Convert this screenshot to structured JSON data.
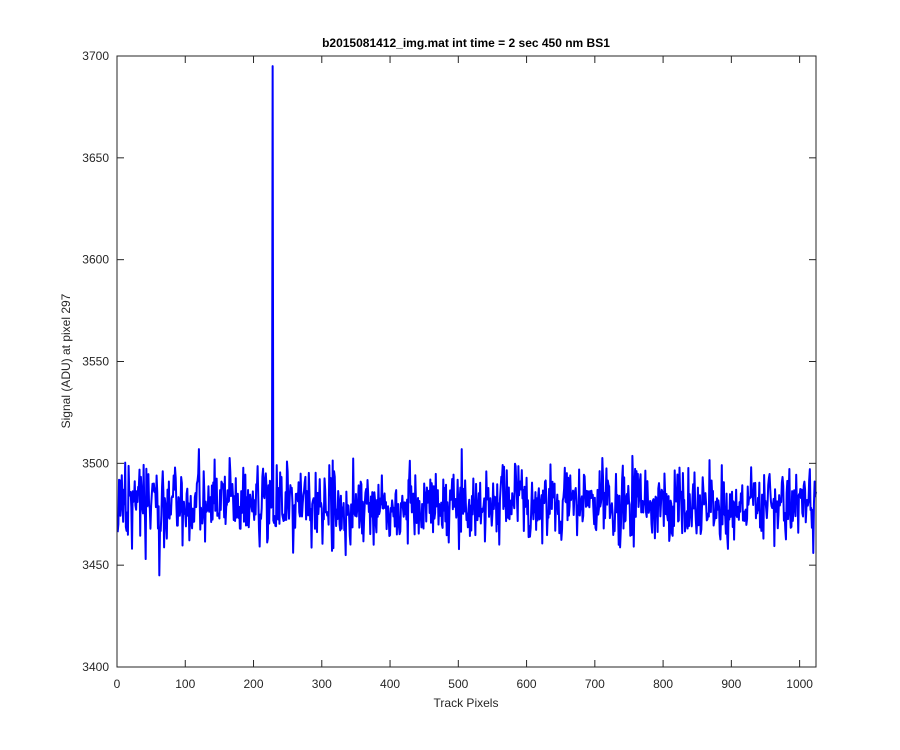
{
  "chart_data": {
    "type": "line",
    "title": "b2015081412_img.mat int time = 2 sec  450 nm BS1",
    "xlabel": "Track Pixels",
    "ylabel": "Signal (ADU) at pixel 297",
    "xlim": [
      0,
      1024
    ],
    "ylim": [
      3400,
      3700
    ],
    "xticks": [
      0,
      100,
      200,
      300,
      400,
      500,
      600,
      700,
      800,
      900,
      1000
    ],
    "yticks": [
      3400,
      3450,
      3500,
      3550,
      3600,
      3650,
      3700
    ],
    "grid": false,
    "legend": "none",
    "series": [
      {
        "color": "#0000ff",
        "x": [
          1,
          1024
        ],
        "y": [
          3480,
          3480
        ],
        "baseline": 3480,
        "noise_amplitude": 9,
        "sample_count": 1024,
        "spike": {
          "x": 228,
          "y": 3695
        },
        "notable_points": [
          {
            "x": 62,
            "y": 3445
          },
          {
            "x": 42,
            "y": 3453
          },
          {
            "x": 120,
            "y": 3507
          },
          {
            "x": 315,
            "y": 3457
          },
          {
            "x": 505,
            "y": 3507
          },
          {
            "x": 735,
            "y": 3460
          },
          {
            "x": 895,
            "y": 3458
          },
          {
            "x": 1020,
            "y": 3456
          }
        ]
      }
    ]
  }
}
